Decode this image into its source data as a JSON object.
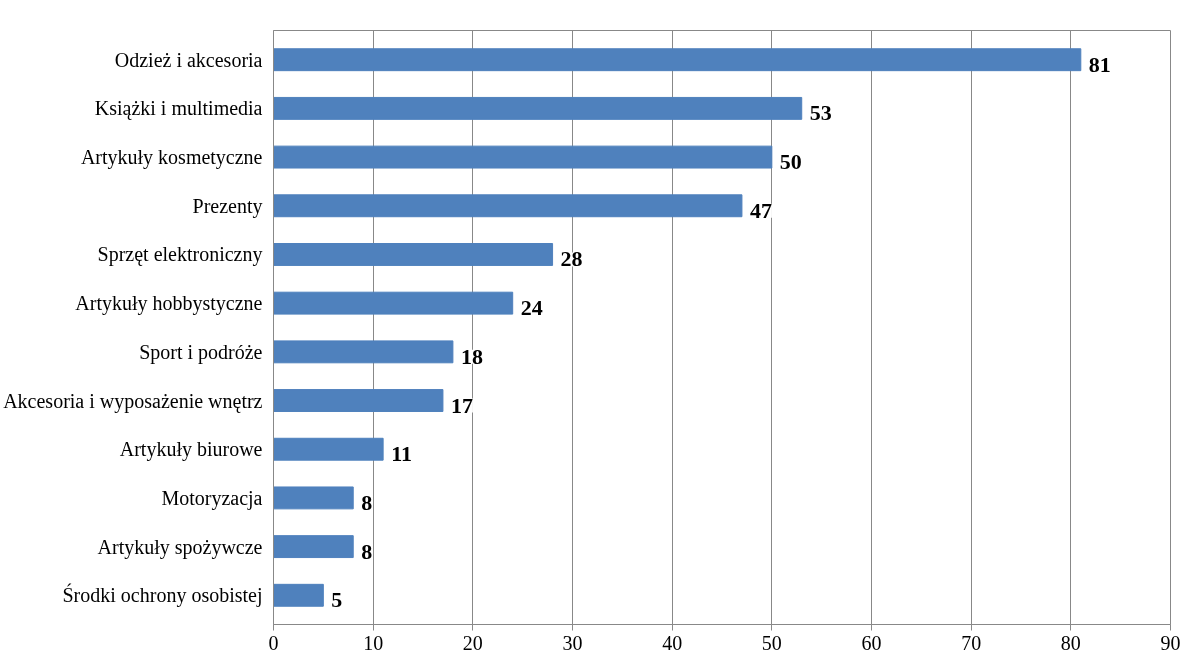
{
  "chart_data": {
    "type": "bar",
    "orientation": "horizontal",
    "categories": [
      "Odzież i akcesoria",
      "Książki i multimedia",
      "Artykuły kosmetyczne",
      "Prezenty",
      "Sprzęt elektroniczny",
      "Artykuły hobbystyczne",
      "Sport i podróże",
      "Akcesoria i wyposażenie wnętrz",
      "Artykuły biurowe",
      "Motoryzacja",
      "Artykuły spożywcze",
      "Środki ochrony osobistej"
    ],
    "values": [
      81,
      53,
      50,
      47,
      28,
      24,
      18,
      17,
      11,
      8,
      8,
      5
    ],
    "color": "#4f81bd",
    "xlim": [
      0,
      90
    ],
    "xticks": [
      0,
      10,
      20,
      30,
      40,
      50,
      60,
      70,
      80,
      90
    ],
    "grid": "x",
    "data_labels": true
  }
}
